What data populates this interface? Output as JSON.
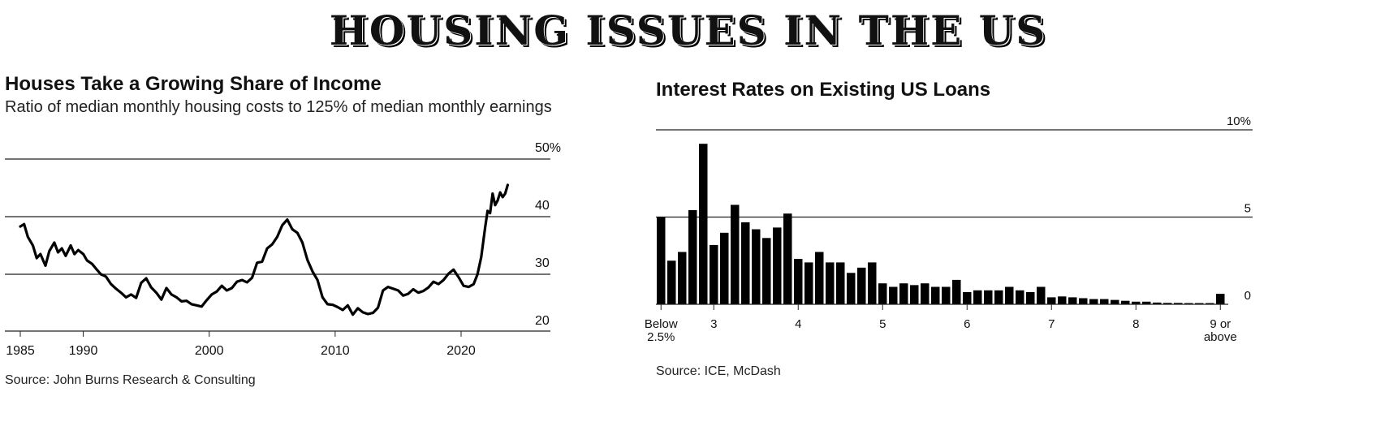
{
  "page_title": "HOUSING ISSUES IN THE US",
  "chart_data": [
    {
      "type": "line",
      "title": "Houses Take a Growing Share of Income",
      "subtitle": "Ratio of median monthly housing costs to 125% of median monthly earnings",
      "source": "Source: John Burns Research & Consulting",
      "ylim": [
        20,
        50
      ],
      "yticks": [
        20,
        30,
        40,
        50
      ],
      "ytick_labels": [
        "20",
        "30",
        "40",
        "50%"
      ],
      "xticks": [
        1985,
        1990,
        2000,
        2010,
        2020
      ],
      "xtick_labels": [
        "1985",
        "1990",
        "2000",
        "2010",
        "2020"
      ],
      "xlim": [
        1984,
        2027
      ],
      "grid": true,
      "series": [
        {
          "x": [
            1985.0,
            1985.3,
            1985.6,
            1986.0,
            1986.3,
            1986.6,
            1987.0,
            1987.3,
            1987.7,
            1988.0,
            1988.3,
            1988.6,
            1989.0,
            1989.3,
            1989.6,
            1990.0,
            1990.3,
            1990.7,
            1991.0,
            1991.4,
            1991.8,
            1992.2,
            1992.6,
            1993.0,
            1993.4,
            1993.8,
            1994.2,
            1994.6,
            1995.0,
            1995.4,
            1995.8,
            1996.2,
            1996.6,
            1997.0,
            1997.4,
            1997.8,
            1998.2,
            1998.6,
            1999.0,
            1999.4,
            1999.8,
            2000.2,
            2000.6,
            2001.0,
            2001.4,
            2001.8,
            2002.2,
            2002.6,
            2003.0,
            2003.4,
            2003.8,
            2004.2,
            2004.6,
            2005.0,
            2005.4,
            2005.8,
            2006.2,
            2006.6,
            2007.0,
            2007.4,
            2007.8,
            2008.2,
            2008.6,
            2009.0,
            2009.4,
            2009.8,
            2010.2,
            2010.6,
            2011.0,
            2011.4,
            2011.8,
            2012.2,
            2012.6,
            2013.0,
            2013.4,
            2013.8,
            2014.2,
            2014.6,
            2015.0,
            2015.4,
            2015.8,
            2016.2,
            2016.6,
            2017.0,
            2017.4,
            2017.8,
            2018.2,
            2018.6,
            2019.0,
            2019.4,
            2019.8,
            2020.2,
            2020.6,
            2021.0,
            2021.3,
            2021.6,
            2021.9,
            2022.1,
            2022.3,
            2022.5,
            2022.7,
            2022.9,
            2023.1,
            2023.3,
            2023.5,
            2023.7
          ],
          "y": [
            38.3,
            38.7,
            36.5,
            35.0,
            32.8,
            33.5,
            31.5,
            34.0,
            35.5,
            33.8,
            34.5,
            33.2,
            35.0,
            33.5,
            34.2,
            33.5,
            32.4,
            31.8,
            31.0,
            30.0,
            29.6,
            28.3,
            27.5,
            26.8,
            26.0,
            26.5,
            25.9,
            28.5,
            29.3,
            27.7,
            26.8,
            25.6,
            27.6,
            26.5,
            26.0,
            25.3,
            25.4,
            24.8,
            24.6,
            24.4,
            25.5,
            26.5,
            27.0,
            28.0,
            27.2,
            27.6,
            28.7,
            29.0,
            28.6,
            29.4,
            32.0,
            32.2,
            34.5,
            35.2,
            36.5,
            38.5,
            39.5,
            37.8,
            37.2,
            35.5,
            32.5,
            30.5,
            29.0,
            26.0,
            24.8,
            24.7,
            24.3,
            23.8,
            24.6,
            23.0,
            24.1,
            23.4,
            23.1,
            23.3,
            24.2,
            27.2,
            27.8,
            27.5,
            27.2,
            26.3,
            26.6,
            27.4,
            26.8,
            27.1,
            27.7,
            28.7,
            28.3,
            29.0,
            30.1,
            30.8,
            29.5,
            28.0,
            27.8,
            28.3,
            30.0,
            33.0,
            38.0,
            41.0,
            40.6,
            44.0,
            42.0,
            42.8,
            44.2,
            43.4,
            44.0,
            45.5
          ]
        }
      ]
    },
    {
      "type": "bar",
      "title": "Interest Rates on Existing US Loans",
      "source": "Source: ICE, McDash",
      "ylim": [
        0,
        10
      ],
      "yticks": [
        0,
        5,
        10
      ],
      "ytick_labels": [
        "0",
        "5",
        "10%"
      ],
      "grid": true,
      "tick_labels": [
        {
          "index": 0,
          "lines": [
            "Below",
            "2.5%"
          ]
        },
        {
          "index": 5,
          "lines": [
            "3"
          ]
        },
        {
          "index": 13,
          "lines": [
            "4"
          ]
        },
        {
          "index": 21,
          "lines": [
            "5"
          ]
        },
        {
          "index": 29,
          "lines": [
            "6"
          ]
        },
        {
          "index": 37,
          "lines": [
            "7"
          ]
        },
        {
          "index": 45,
          "lines": [
            "8"
          ]
        },
        {
          "index": 53,
          "lines": [
            "9 or",
            "above"
          ]
        }
      ],
      "values": [
        5.0,
        2.5,
        3.0,
        5.4,
        9.2,
        3.4,
        4.1,
        5.7,
        4.7,
        4.3,
        3.8,
        4.4,
        5.2,
        2.6,
        2.4,
        3.0,
        2.4,
        2.4,
        1.8,
        2.1,
        2.4,
        1.2,
        1.0,
        1.2,
        1.1,
        1.2,
        1.0,
        1.0,
        1.4,
        0.7,
        0.8,
        0.8,
        0.8,
        1.0,
        0.8,
        0.7,
        1.0,
        0.4,
        0.45,
        0.4,
        0.35,
        0.3,
        0.3,
        0.25,
        0.2,
        0.15,
        0.15,
        0.1,
        0.08,
        0.08,
        0.06,
        0.06,
        0.05,
        0.6
      ]
    }
  ]
}
